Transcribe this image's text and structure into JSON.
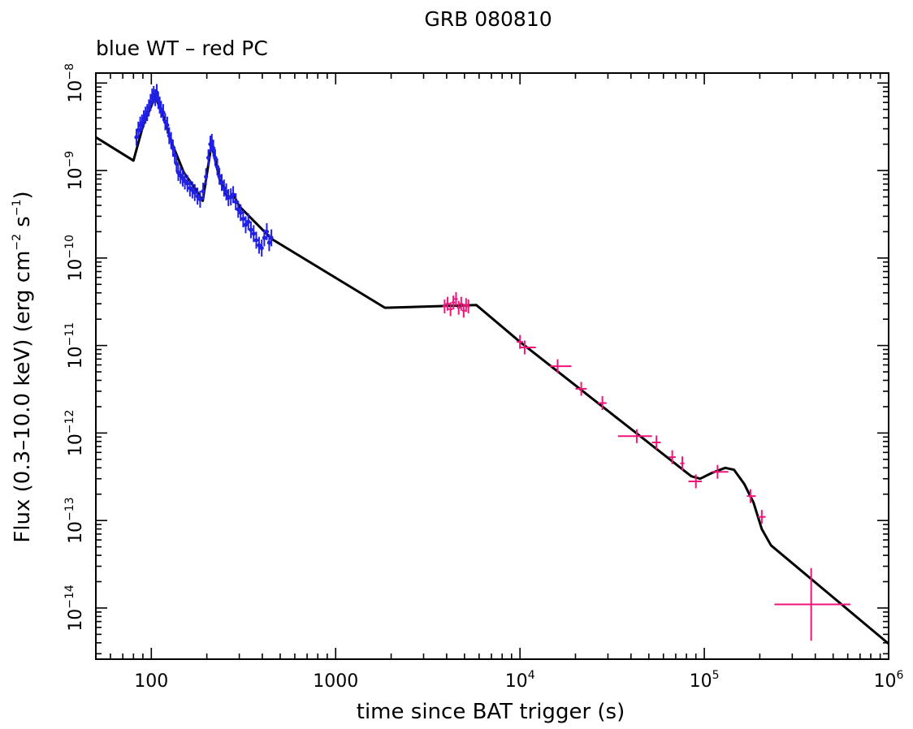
{
  "chart_data": {
    "type": "scatter",
    "title": "GRB 080810",
    "subtitle": "blue WT – red PC",
    "xlabel": "time since BAT trigger (s)",
    "ylabel": {
      "main": "Flux (0.3–10.0 keV) (erg cm",
      "sup1": "−2",
      "mid": " s",
      "sup2": "−1",
      "end": ")"
    },
    "x_scale": "log",
    "y_scale": "log",
    "xlim": [
      50,
      1000000
    ],
    "ylim": [
      2.6e-15,
      1.3e-08
    ],
    "grid": false,
    "colors": {
      "WT": "#1f1fe6",
      "PC": "#f0147a",
      "model": "#000000"
    },
    "x_ticks": [
      {
        "value": 100,
        "label": "100",
        "exp": ""
      },
      {
        "value": 1000,
        "label": "1000",
        "exp": ""
      },
      {
        "value": 10000,
        "label": "10",
        "exp": "4"
      },
      {
        "value": 100000,
        "label": "10",
        "exp": "5"
      },
      {
        "value": 1000000,
        "label": "10",
        "exp": "6"
      }
    ],
    "y_ticks": [
      {
        "value": 1e-08,
        "label": "10",
        "exp": "−8"
      },
      {
        "value": 1e-09,
        "label": "10",
        "exp": "−9"
      },
      {
        "value": 1e-10,
        "label": "10",
        "exp": "−10"
      },
      {
        "value": 1e-11,
        "label": "10",
        "exp": "−11"
      },
      {
        "value": 1e-12,
        "label": "10",
        "exp": "−12"
      },
      {
        "value": 1e-13,
        "label": "10",
        "exp": "−13"
      },
      {
        "value": 1e-14,
        "label": "10",
        "exp": "−14"
      }
    ],
    "series": [
      {
        "name": "WT",
        "points": [
          {
            "x": 83,
            "y": 2.4e-09
          },
          {
            "x": 85,
            "y": 2.9e-09
          },
          {
            "x": 87,
            "y": 3.3e-09
          },
          {
            "x": 89,
            "y": 3.5e-09
          },
          {
            "x": 91,
            "y": 3.9e-09
          },
          {
            "x": 93,
            "y": 4.3e-09
          },
          {
            "x": 95,
            "y": 4.6e-09
          },
          {
            "x": 97,
            "y": 5.2e-09
          },
          {
            "x": 99,
            "y": 6e-09
          },
          {
            "x": 101,
            "y": 6.9e-09
          },
          {
            "x": 103,
            "y": 7.4e-09
          },
          {
            "x": 105,
            "y": 6.8e-09
          },
          {
            "x": 107,
            "y": 7.8e-09
          },
          {
            "x": 109,
            "y": 6.3e-09
          },
          {
            "x": 111,
            "y": 5.6e-09
          },
          {
            "x": 113,
            "y": 5e-09
          },
          {
            "x": 116,
            "y": 4.6e-09
          },
          {
            "x": 119,
            "y": 3.6e-09
          },
          {
            "x": 122,
            "y": 3.3e-09
          },
          {
            "x": 125,
            "y": 2.5e-09
          },
          {
            "x": 128,
            "y": 2.2e-09
          },
          {
            "x": 131,
            "y": 1.8e-09
          },
          {
            "x": 134,
            "y": 1.5e-09
          },
          {
            "x": 137,
            "y": 1.2e-09
          },
          {
            "x": 140,
            "y": 9.5e-10
          },
          {
            "x": 144,
            "y": 8.8e-10
          },
          {
            "x": 148,
            "y": 8.2e-10
          },
          {
            "x": 152,
            "y": 7.6e-10
          },
          {
            "x": 157,
            "y": 7.1e-10
          },
          {
            "x": 162,
            "y": 6.3e-10
          },
          {
            "x": 167,
            "y": 6e-10
          },
          {
            "x": 172,
            "y": 5.6e-10
          },
          {
            "x": 178,
            "y": 5.1e-10
          },
          {
            "x": 184,
            "y": 4.7e-10
          },
          {
            "x": 191,
            "y": 5.8e-10
          },
          {
            "x": 198,
            "y": 8.5e-10
          },
          {
            "x": 204,
            "y": 1.4e-09
          },
          {
            "x": 209,
            "y": 2e-09
          },
          {
            "x": 213,
            "y": 2.1e-09
          },
          {
            "x": 217,
            "y": 1.8e-09
          },
          {
            "x": 222,
            "y": 1.4e-09
          },
          {
            "x": 228,
            "y": 1.1e-09
          },
          {
            "x": 234,
            "y": 8.6e-10
          },
          {
            "x": 241,
            "y": 7.3e-10
          },
          {
            "x": 248,
            "y": 6.3e-10
          },
          {
            "x": 255,
            "y": 5.7e-10
          },
          {
            "x": 262,
            "y": 4.9e-10
          },
          {
            "x": 270,
            "y": 5e-10
          },
          {
            "x": 278,
            "y": 5.3e-10
          },
          {
            "x": 287,
            "y": 4.4e-10
          },
          {
            "x": 296,
            "y": 3.6e-10
          },
          {
            "x": 305,
            "y": 3.3e-10
          },
          {
            "x": 315,
            "y": 2.8e-10
          },
          {
            "x": 325,
            "y": 2.4e-10
          },
          {
            "x": 336,
            "y": 2.6e-10
          },
          {
            "x": 347,
            "y": 2.1e-10
          },
          {
            "x": 359,
            "y": 1.9e-10
          },
          {
            "x": 371,
            "y": 1.6e-10
          },
          {
            "x": 384,
            "y": 1.4e-10
          },
          {
            "x": 397,
            "y": 1.3e-10
          },
          {
            "x": 410,
            "y": 1.7e-10
          },
          {
            "x": 423,
            "y": 2e-10
          },
          {
            "x": 436,
            "y": 1.5e-10
          },
          {
            "x": 448,
            "y": 1.7e-10
          }
        ]
      },
      {
        "name": "PC",
        "points": [
          {
            "x": 3900,
            "y": 2.8e-11,
            "xerr": [
              3800,
              4000
            ]
          },
          {
            "x": 4050,
            "y": 3e-11,
            "xerr": [
              3950,
              4150
            ]
          },
          {
            "x": 4200,
            "y": 2.6e-11,
            "xerr": [
              4100,
              4300
            ]
          },
          {
            "x": 4350,
            "y": 3.1e-11,
            "xerr": [
              4250,
              4450
            ]
          },
          {
            "x": 4500,
            "y": 3.4e-11,
            "xerr": [
              4400,
              4600
            ]
          },
          {
            "x": 4650,
            "y": 2.7e-11,
            "xerr": [
              4550,
              4750
            ]
          },
          {
            "x": 4800,
            "y": 3e-11,
            "xerr": [
              4700,
              4900
            ]
          },
          {
            "x": 4950,
            "y": 2.5e-11,
            "xerr": [
              4850,
              5050
            ]
          },
          {
            "x": 5100,
            "y": 2.9e-11,
            "xerr": [
              5000,
              5200
            ]
          },
          {
            "x": 5250,
            "y": 2.8e-11,
            "xerr": [
              5150,
              5350
            ]
          },
          {
            "x": 10000,
            "y": 1.1e-11,
            "xerr": [
              9600,
              10400
            ]
          },
          {
            "x": 10600,
            "y": 9.5e-12,
            "xerr": [
              10000,
              12200
            ]
          },
          {
            "x": 16000,
            "y": 5.8e-12,
            "xerr": [
              14500,
              19000
            ]
          },
          {
            "x": 21500,
            "y": 3.2e-12,
            "xerr": [
              20000,
              23000
            ]
          },
          {
            "x": 28000,
            "y": 2.2e-12,
            "xerr": [
              26500,
              29500
            ]
          },
          {
            "x": 43000,
            "y": 9.2e-13,
            "xerr": [
              34000,
              52000
            ]
          },
          {
            "x": 55000,
            "y": 7.8e-13,
            "xerr": [
              52000,
              58000
            ]
          },
          {
            "x": 67000,
            "y": 5.3e-13,
            "xerr": [
              64000,
              70000
            ]
          },
          {
            "x": 76000,
            "y": 4.5e-13,
            "xerr": [
              74000,
              78000
            ]
          },
          {
            "x": 90000,
            "y": 2.8e-13,
            "xerr": [
              82000,
              97000
            ]
          },
          {
            "x": 118000,
            "y": 3.6e-13,
            "xerr": [
              110000,
              135000
            ]
          },
          {
            "x": 178000,
            "y": 1.9e-13,
            "xerr": [
              170000,
              190000
            ]
          },
          {
            "x": 205000,
            "y": 1.1e-13,
            "xerr": [
              195000,
              215000
            ]
          },
          {
            "x": 380000,
            "y": 1.1e-14,
            "xerr": [
              240000,
              620000
            ]
          }
        ]
      },
      {
        "name": "model",
        "points": [
          {
            "x": 50,
            "y": 2.4e-09
          },
          {
            "x": 80,
            "y": 1.3e-09
          },
          {
            "x": 90,
            "y": 3.2e-09
          },
          {
            "x": 105,
            "y": 7e-09
          },
          {
            "x": 115,
            "y": 4.4e-09
          },
          {
            "x": 130,
            "y": 2e-09
          },
          {
            "x": 150,
            "y": 9.5e-10
          },
          {
            "x": 175,
            "y": 6e-10
          },
          {
            "x": 190,
            "y": 4.5e-10
          },
          {
            "x": 212,
            "y": 2e-09
          },
          {
            "x": 235,
            "y": 7.8e-10
          },
          {
            "x": 260,
            "y": 4.8e-10
          },
          {
            "x": 280,
            "y": 5.2e-10
          },
          {
            "x": 300,
            "y": 3.9e-10
          },
          {
            "x": 450,
            "y": 1.65e-10
          },
          {
            "x": 1850,
            "y": 2.7e-11
          },
          {
            "x": 5800,
            "y": 2.9e-11
          },
          {
            "x": 10000,
            "y": 1.1e-11
          },
          {
            "x": 85000,
            "y": 3.2e-13
          },
          {
            "x": 95000,
            "y": 3e-13
          },
          {
            "x": 110000,
            "y": 3.5e-13
          },
          {
            "x": 130000,
            "y": 4e-13
          },
          {
            "x": 145000,
            "y": 3.8e-13
          },
          {
            "x": 165000,
            "y": 2.6e-13
          },
          {
            "x": 185000,
            "y": 1.6e-13
          },
          {
            "x": 205000,
            "y": 8e-14
          },
          {
            "x": 230000,
            "y": 5.2e-14
          },
          {
            "x": 1000000,
            "y": 3.9e-15
          }
        ]
      }
    ]
  }
}
